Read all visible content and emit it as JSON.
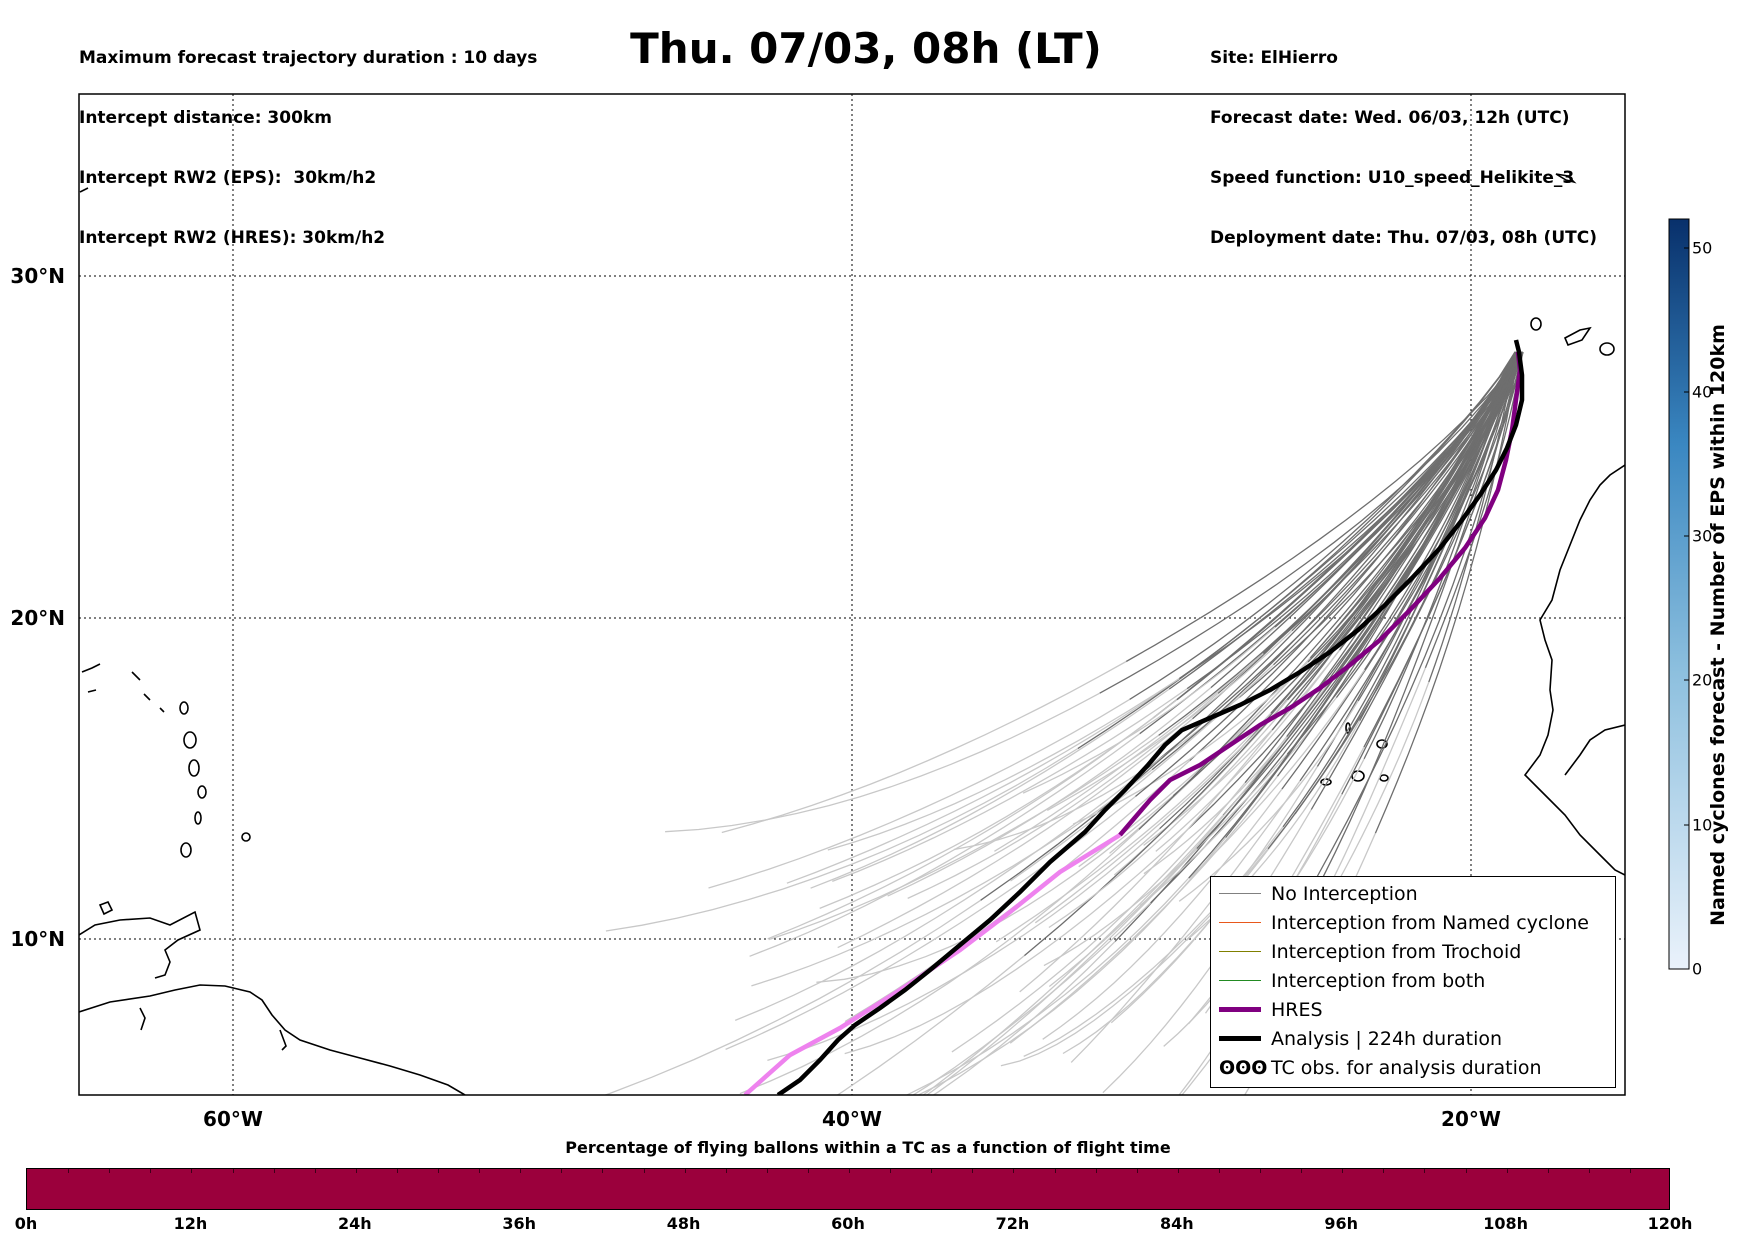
{
  "header": {
    "left": [
      "Maximum forecast trajectory duration : 10 days",
      "Intercept distance: 300km",
      "Intercept RW2 (EPS):  30km/h2",
      "Intercept RW2 (HRES): 30km/h2"
    ],
    "title": "Thu. 07/03, 08h (LT)",
    "right": [
      "Site: ElHierro",
      "Forecast date: Wed. 06/03, 12h (UTC)",
      "Speed function: U10_speed_Helikite_3",
      "Deployment date: Thu. 07/03, 08h (UTC)"
    ]
  },
  "map": {
    "lon_range": [
      -65,
      15
    ],
    "lat_range": [
      5.5,
      35
    ],
    "lon_ticks": [
      "60°W",
      "40°W",
      "20°W"
    ],
    "lat_ticks": [
      "30°N",
      "20°N",
      "10°N"
    ],
    "colors": {
      "no_interception_dark": "#6e6e6e",
      "no_interception_light": "#c8c8c8",
      "hres": "#800080",
      "hres_light": "#ee82ee",
      "analysis": "#000000"
    }
  },
  "legend": {
    "items": [
      {
        "label": "No Interception",
        "color": "#808080",
        "width": 1.5
      },
      {
        "label": "Interception from Named cyclone",
        "color": "#e8581c",
        "width": 1.5
      },
      {
        "label": "Interception from Trochoid",
        "color": "#808000",
        "width": 1.5
      },
      {
        "label": "Interception from both",
        "color": "#228b22",
        "width": 1.5
      },
      {
        "label": "HRES",
        "color": "#800080",
        "width": 5
      },
      {
        "label": "Analysis | 224h duration",
        "color": "#000000",
        "width": 5
      },
      {
        "label": "TC obs. for analysis duration",
        "color": "#000000",
        "width": 0,
        "symbol": "ʘʘʘ"
      }
    ]
  },
  "colorbar": {
    "title": "Named cyclones forecast - Number of EPS within 120km",
    "ticks": [
      "0",
      "10",
      "20",
      "30",
      "40",
      "50"
    ],
    "range": [
      0,
      52
    ],
    "color_low": "#e6eff9",
    "color_high": "#08306b"
  },
  "percentage_bar": {
    "title": "Percentage of flying ballons within a TC as a function of flight time",
    "ticks": [
      "0h",
      "12h",
      "24h",
      "36h",
      "48h",
      "60h",
      "72h",
      "84h",
      "96h",
      "108h",
      "120h"
    ],
    "color": "#9b003c"
  }
}
